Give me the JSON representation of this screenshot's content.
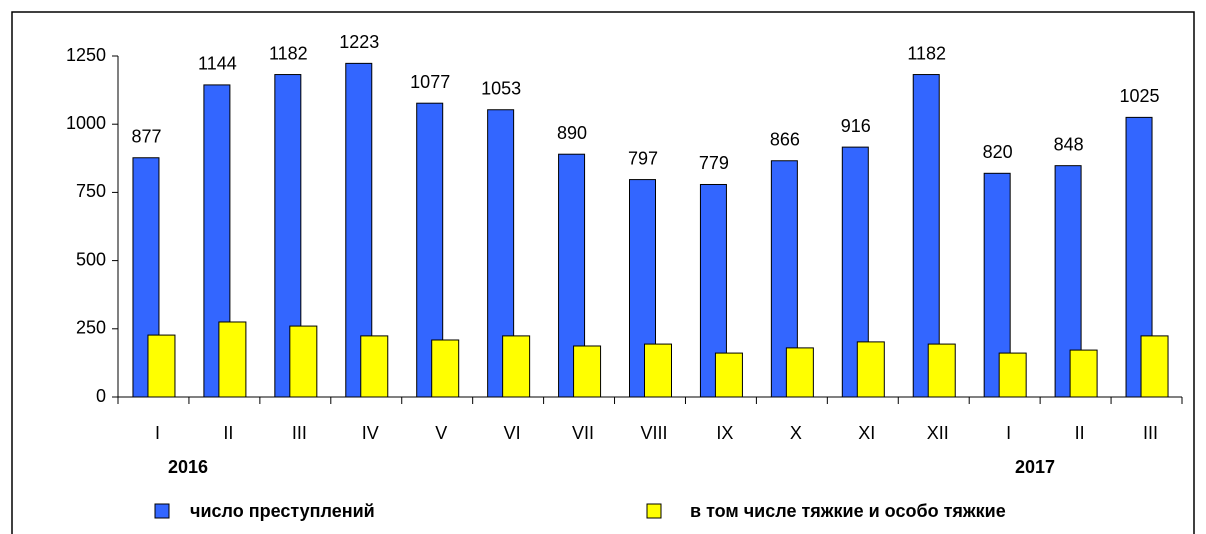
{
  "chart_data": {
    "type": "bar",
    "categories": [
      "I",
      "II",
      "III",
      "IV",
      "V",
      "VI",
      "VII",
      "VIII",
      "IX",
      "X",
      "XI",
      "XII",
      "I",
      "II",
      "III"
    ],
    "annotations": [
      "2016",
      "2017"
    ],
    "series": [
      {
        "name": "число преступлений",
        "color": "#3366ff",
        "values": [
          877,
          1144,
          1182,
          1223,
          1077,
          1053,
          890,
          797,
          779,
          866,
          916,
          1182,
          820,
          848,
          1025
        ],
        "show_values": true
      },
      {
        "name": "в том числе тяжкие и особо тяжкие",
        "color": "#ffff00",
        "values": [
          227,
          275,
          260,
          224,
          209,
          224,
          187,
          194,
          161,
          180,
          202,
          194,
          161,
          172,
          224
        ]
      }
    ],
    "ylim": [
      0,
      1250
    ],
    "yticks": [
      0,
      250,
      500,
      750,
      1000,
      1250
    ],
    "grid": false,
    "legend": "bottom"
  }
}
